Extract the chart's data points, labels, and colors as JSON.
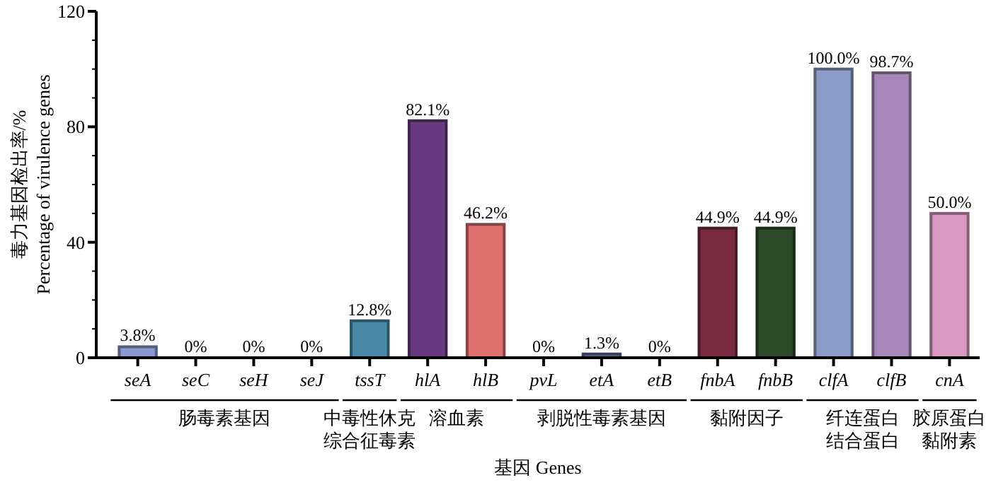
{
  "chart_data": {
    "type": "bar",
    "xlabel": "基因 Genes",
    "ylabel": "毒力基因检出率/%\nPercentage of virulence genes",
    "categories": [
      "seA",
      "seC",
      "seH",
      "seJ",
      "tssT",
      "hlA",
      "hlB",
      "pvL",
      "etA",
      "etB",
      "fnbA",
      "fnbB",
      "clfA",
      "clfB",
      "cnA"
    ],
    "values": [
      3.8,
      0,
      0,
      0,
      12.8,
      82.1,
      46.2,
      0,
      1.3,
      0,
      44.9,
      44.9,
      100.0,
      98.7,
      50.0
    ],
    "value_labels": [
      "3.8%",
      "0%",
      "0%",
      "0%",
      "12.8%",
      "82.1%",
      "46.2%",
      "0%",
      "1.3%",
      "0%",
      "44.9%",
      "44.9%",
      "100.0%",
      "98.7%",
      "50.0%"
    ],
    "colors": [
      "#8a9ad0",
      "#8a9ad0",
      "#8a9ad0",
      "#8a9ad0",
      "#4a8aa8",
      "#6a3a80",
      "#e07070",
      "#5a6a9a",
      "#5a6a9a",
      "#5a6a9a",
      "#7a2a40",
      "#2a4a2a",
      "#8c9cc8",
      "#a888b8",
      "#d898c0"
    ],
    "annotations": [
      "肠毒素基因",
      "中毒性休克综合征毒素",
      "溶血素",
      "剥脱性毒素基因",
      "黏附因子",
      "纤连蛋白结合蛋白",
      "胶原蛋白黏附素"
    ],
    "ylim": [
      0,
      120
    ],
    "yticks": [
      0,
      40,
      80,
      120
    ],
    "grid": false
  }
}
